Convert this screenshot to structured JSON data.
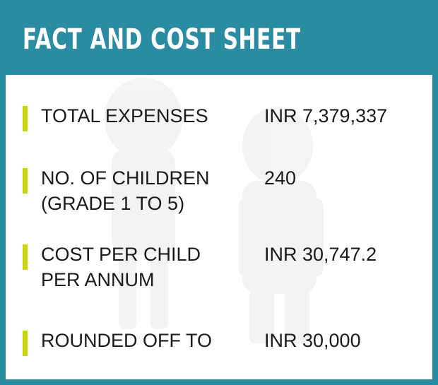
{
  "title": "FACT AND COST SHEET",
  "colors": {
    "header": "#2a8ca3",
    "accent_bar": "#c8d400",
    "text": "#1a1a1a"
  },
  "rows": [
    {
      "label_lines": [
        "TOTAL EXPENSES"
      ],
      "value": "INR 7,379,337"
    },
    {
      "label_lines": [
        "NO. OF CHILDREN",
        "(GRADE 1 TO 5)"
      ],
      "value": "240"
    },
    {
      "label_lines": [
        "COST PER CHILD",
        "PER ANNUM"
      ],
      "value": "INR 30,747.2"
    },
    {
      "label_lines": [
        "ROUNDED OFF TO"
      ],
      "value": "INR 30,000"
    }
  ]
}
